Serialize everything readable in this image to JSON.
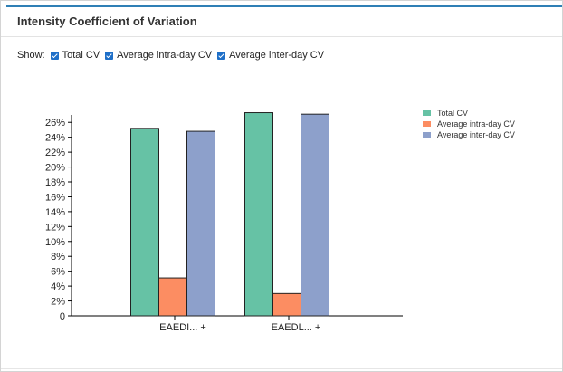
{
  "panel": {
    "title": "Intensity Coefficient of Variation"
  },
  "controls": {
    "show_label": "Show:",
    "checkboxes": [
      {
        "label": "Total CV",
        "checked": true
      },
      {
        "label": "Average intra-day CV",
        "checked": true
      },
      {
        "label": "Average inter-day CV",
        "checked": true
      }
    ]
  },
  "chart_data": {
    "type": "bar",
    "categories": [
      "EAEDI... +",
      "EAEDL... +"
    ],
    "series": [
      {
        "name": "Total CV",
        "color": "#66c2a5",
        "values": [
          25.2,
          27.3
        ]
      },
      {
        "name": "Average intra-day CV",
        "color": "#fc8d62",
        "values": [
          5.1,
          3.0
        ]
      },
      {
        "name": "Average inter-day CV",
        "color": "#8da0cb",
        "values": [
          24.8,
          27.1
        ]
      }
    ],
    "ylim": [
      0,
      27
    ],
    "yticks": [
      0,
      2,
      4,
      6,
      8,
      10,
      12,
      14,
      16,
      18,
      20,
      22,
      24,
      26
    ],
    "ytick_labels": [
      "0",
      "2%",
      "4%",
      "6%",
      "8%",
      "10%",
      "12%",
      "14%",
      "16%",
      "18%",
      "20%",
      "22%",
      "24%",
      "26%"
    ],
    "legend_position": "top-right",
    "grid": false,
    "title": "",
    "xlabel": "",
    "ylabel": ""
  }
}
